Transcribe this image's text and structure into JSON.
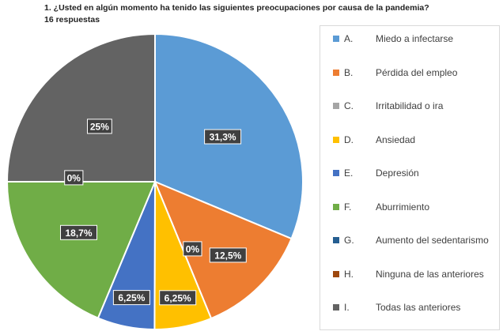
{
  "title": "1. ¿Usted en algún momento ha tenido las siguientes preocupaciones por causa de la pandemia?",
  "subtitle": "16 respuestas",
  "chart_data": {
    "type": "pie",
    "categories": [
      "Miedo a infectarse",
      "Pérdida del empleo",
      "Irritabilidad o ira",
      "Ansiedad",
      "Depresión",
      "Aburrimiento",
      "Aumento del sedentarismo",
      "Ninguna de las anteriores",
      "Todas las anteriores"
    ],
    "letters": [
      "A.",
      "B.",
      "C.",
      "D.",
      "E.",
      "F.",
      "G.",
      "H.",
      "I."
    ],
    "values": [
      31.3,
      12.5,
      0,
      6.25,
      6.25,
      18.7,
      0,
      0,
      25
    ],
    "data_labels": [
      "31,3%",
      "12,5%",
      "0%",
      "6,25%",
      "6,25%",
      "18,7%",
      "0%",
      "",
      "25%"
    ],
    "colors": [
      "#5b9bd5",
      "#ed7d31",
      "#a5a5a5",
      "#ffc000",
      "#4472c4",
      "#70ad47",
      "#255e91",
      "#9e480e",
      "#636363"
    ],
    "legend_position": "right"
  }
}
